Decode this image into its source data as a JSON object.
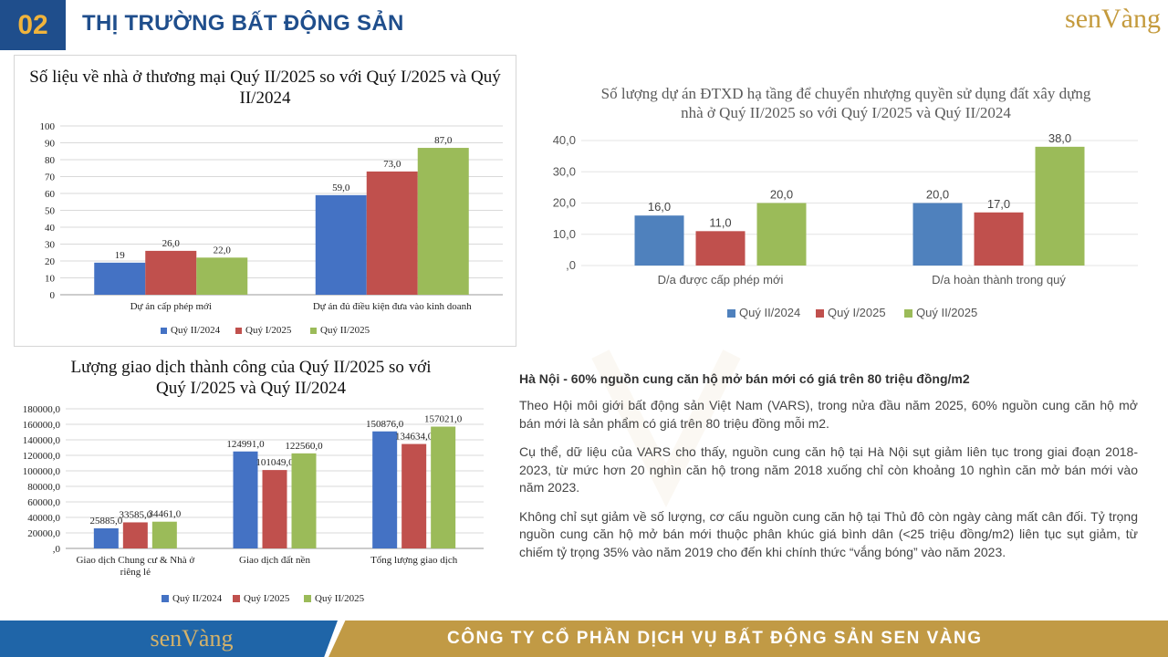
{
  "header": {
    "section_number": "02",
    "title": "THỊ TRƯỜNG BẤT ĐỘNG SẢN",
    "logo": "senVàng"
  },
  "chart_data": [
    {
      "type": "bar",
      "title": "Số liệu về nhà ở thương mại Quý II/2025 so với Quý I/2025 và Quý II/2024",
      "categories": [
        "Dự án cấp phép mới",
        "Dự án đủ điều kiện đưa vào kinh doanh"
      ],
      "series": [
        {
          "name": "Quý II/2024",
          "values": [
            19,
            59
          ],
          "labels": [
            "19",
            "59,0"
          ],
          "color": "#4472c4"
        },
        {
          "name": "Quý I/2025",
          "values": [
            26,
            73
          ],
          "labels": [
            "26,0",
            "73,0"
          ],
          "color": "#c0504d"
        },
        {
          "name": "Quý II/2025",
          "values": [
            22,
            87
          ],
          "labels": [
            "22,0",
            "87,0"
          ],
          "color": "#9bbb59"
        }
      ],
      "ylim": [
        0,
        100
      ],
      "yticks": [
        "0",
        "10",
        "20",
        "30",
        "40",
        "50",
        "60",
        "70",
        "80",
        "90",
        "100"
      ],
      "grid": true,
      "legend": "bottom"
    },
    {
      "type": "bar",
      "title": "Số lượng dự án ĐTXD hạ tầng để chuyển nhượng quyền sử dụng đất xây dựng nhà ở Quý II/2025 so với Quý I/2025 và Quý II/2024",
      "categories": [
        "D/a được cấp phép mới",
        "D/a hoàn thành trong quý"
      ],
      "series": [
        {
          "name": "Quý II/2024",
          "values": [
            16,
            20
          ],
          "labels": [
            "16,0",
            "20,0"
          ],
          "color": "#4f81bd"
        },
        {
          "name": "Quý I/2025",
          "values": [
            11,
            17
          ],
          "labels": [
            "11,0",
            "17,0"
          ],
          "color": "#c0504d"
        },
        {
          "name": "Quý II/2025",
          "values": [
            20,
            38
          ],
          "labels": [
            "20,0",
            "38,0"
          ],
          "color": "#9bbb59"
        }
      ],
      "ylim": [
        0,
        40
      ],
      "yticks": [
        ",0",
        "10,0",
        "20,0",
        "30,0",
        "40,0"
      ],
      "grid": true,
      "legend": "bottom"
    },
    {
      "type": "bar",
      "title": "Lượng giao dịch thành công của Quý II/2025 so với Quý I/2025 và Quý II/2024",
      "categories": [
        "Giao dịch Chung cư & Nhà ở riêng lẻ",
        "Giao dịch đất nền",
        "Tổng lượng giao dịch"
      ],
      "series": [
        {
          "name": "Quý II/2024",
          "values": [
            25885,
            124991,
            150876
          ],
          "labels": [
            "25885,0",
            "124991,0",
            "150876,0"
          ],
          "color": "#4472c4"
        },
        {
          "name": "Quý I/2025",
          "values": [
            33585,
            101049,
            134634
          ],
          "labels": [
            "33585,0",
            "101049,0",
            "134634,0"
          ],
          "color": "#c0504d"
        },
        {
          "name": "Quý II/2025",
          "values": [
            34461,
            122560,
            157021
          ],
          "labels": [
            "34461,0",
            "122560,0",
            "157021,0"
          ],
          "color": "#9bbb59"
        }
      ],
      "ylim": [
        0,
        180000
      ],
      "yticks": [
        ",0",
        "20000,0",
        "40000,0",
        "60000,0",
        "80000,0",
        "100000,0",
        "120000,0",
        "140000,0",
        "160000,0",
        "180000,0"
      ],
      "grid": true,
      "legend": "bottom"
    }
  ],
  "article": {
    "heading": "Hà Nội - 60% nguồn cung căn hộ mở bán mới có giá trên 80 triệu đồng/m2",
    "paragraphs": [
      "Theo Hội môi giới bất động sản Việt Nam (VARS), trong nửa đầu năm 2025, 60% nguồn cung căn hộ mở bán mới là sản phẩm có giá trên 80 triệu đồng mỗi m2.",
      "Cụ thể, dữ liệu của VARS cho thấy, nguồn cung căn hộ tại Hà Nội sụt giảm liên tục trong giai đoạn 2018-2023, từ mức hơn 20 nghìn căn hộ trong năm 2018 xuống chỉ còn khoảng 10 nghìn căn mở bán mới vào năm 2023.",
      "Không chỉ sụt giảm về số lượng, cơ cấu nguồn cung căn hộ tại Thủ đô còn ngày càng mất cân đối. Tỷ trọng nguồn cung căn hộ mở bán mới thuộc phân khúc giá bình dân (<25 triệu đồng/m2) liên tục sụt giảm, từ chiếm tỷ trọng 35% vào năm 2019 cho đến khi chính thức “vắng bóng” vào năm 2023."
    ]
  },
  "footer": {
    "logo": "senVàng",
    "company": "CÔNG TY CỔ PHẦN DỊCH VỤ BẤT ĐỘNG SẢN SEN VÀNG"
  },
  "colors": {
    "brand_blue": "#1f4e8c",
    "brand_gold": "#c19a45"
  }
}
